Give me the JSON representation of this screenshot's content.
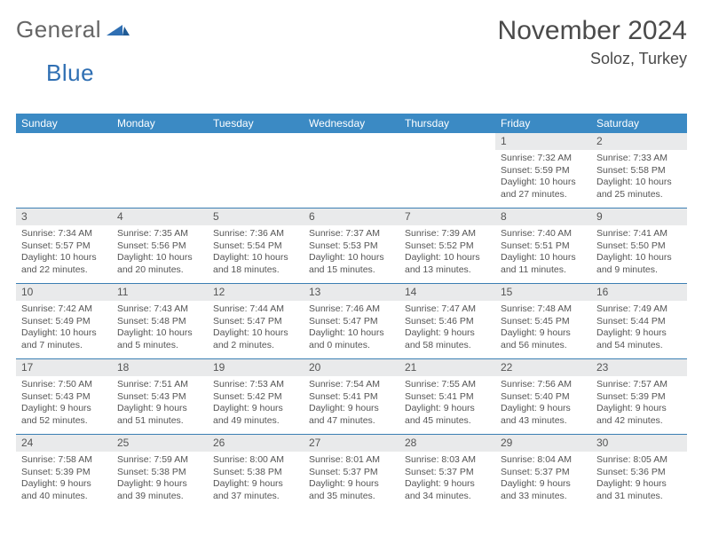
{
  "brand": {
    "text_gray": "General",
    "text_blue": "Blue"
  },
  "title": "November 2024",
  "location": "Soloz, Turkey",
  "colors": {
    "header_bg": "#3b8ac4",
    "header_text": "#ffffff",
    "daynum_bg": "#e9eaeb",
    "text": "#555555",
    "rule": "#3b7fb3",
    "brand_gray": "#666666",
    "brand_blue": "#2f6fb3",
    "page_bg": "#ffffff"
  },
  "fonts": {
    "month_title_pt": 30,
    "location_pt": 18,
    "logo_pt": 26,
    "weekday_pt": 12,
    "daynum_pt": 12,
    "body_pt": 10.5
  },
  "weekdays": [
    "Sunday",
    "Monday",
    "Tuesday",
    "Wednesday",
    "Thursday",
    "Friday",
    "Saturday"
  ],
  "weeks": [
    [
      {
        "empty": true
      },
      {
        "empty": true
      },
      {
        "empty": true
      },
      {
        "empty": true
      },
      {
        "empty": true
      },
      {
        "n": "1",
        "sr": "7:32 AM",
        "ss": "5:59 PM",
        "dl": "10 hours and 27 minutes."
      },
      {
        "n": "2",
        "sr": "7:33 AM",
        "ss": "5:58 PM",
        "dl": "10 hours and 25 minutes."
      }
    ],
    [
      {
        "n": "3",
        "sr": "7:34 AM",
        "ss": "5:57 PM",
        "dl": "10 hours and 22 minutes."
      },
      {
        "n": "4",
        "sr": "7:35 AM",
        "ss": "5:56 PM",
        "dl": "10 hours and 20 minutes."
      },
      {
        "n": "5",
        "sr": "7:36 AM",
        "ss": "5:54 PM",
        "dl": "10 hours and 18 minutes."
      },
      {
        "n": "6",
        "sr": "7:37 AM",
        "ss": "5:53 PM",
        "dl": "10 hours and 15 minutes."
      },
      {
        "n": "7",
        "sr": "7:39 AM",
        "ss": "5:52 PM",
        "dl": "10 hours and 13 minutes."
      },
      {
        "n": "8",
        "sr": "7:40 AM",
        "ss": "5:51 PM",
        "dl": "10 hours and 11 minutes."
      },
      {
        "n": "9",
        "sr": "7:41 AM",
        "ss": "5:50 PM",
        "dl": "10 hours and 9 minutes."
      }
    ],
    [
      {
        "n": "10",
        "sr": "7:42 AM",
        "ss": "5:49 PM",
        "dl": "10 hours and 7 minutes."
      },
      {
        "n": "11",
        "sr": "7:43 AM",
        "ss": "5:48 PM",
        "dl": "10 hours and 5 minutes."
      },
      {
        "n": "12",
        "sr": "7:44 AM",
        "ss": "5:47 PM",
        "dl": "10 hours and 2 minutes."
      },
      {
        "n": "13",
        "sr": "7:46 AM",
        "ss": "5:47 PM",
        "dl": "10 hours and 0 minutes."
      },
      {
        "n": "14",
        "sr": "7:47 AM",
        "ss": "5:46 PM",
        "dl": "9 hours and 58 minutes."
      },
      {
        "n": "15",
        "sr": "7:48 AM",
        "ss": "5:45 PM",
        "dl": "9 hours and 56 minutes."
      },
      {
        "n": "16",
        "sr": "7:49 AM",
        "ss": "5:44 PM",
        "dl": "9 hours and 54 minutes."
      }
    ],
    [
      {
        "n": "17",
        "sr": "7:50 AM",
        "ss": "5:43 PM",
        "dl": "9 hours and 52 minutes."
      },
      {
        "n": "18",
        "sr": "7:51 AM",
        "ss": "5:43 PM",
        "dl": "9 hours and 51 minutes."
      },
      {
        "n": "19",
        "sr": "7:53 AM",
        "ss": "5:42 PM",
        "dl": "9 hours and 49 minutes."
      },
      {
        "n": "20",
        "sr": "7:54 AM",
        "ss": "5:41 PM",
        "dl": "9 hours and 47 minutes."
      },
      {
        "n": "21",
        "sr": "7:55 AM",
        "ss": "5:41 PM",
        "dl": "9 hours and 45 minutes."
      },
      {
        "n": "22",
        "sr": "7:56 AM",
        "ss": "5:40 PM",
        "dl": "9 hours and 43 minutes."
      },
      {
        "n": "23",
        "sr": "7:57 AM",
        "ss": "5:39 PM",
        "dl": "9 hours and 42 minutes."
      }
    ],
    [
      {
        "n": "24",
        "sr": "7:58 AM",
        "ss": "5:39 PM",
        "dl": "9 hours and 40 minutes."
      },
      {
        "n": "25",
        "sr": "7:59 AM",
        "ss": "5:38 PM",
        "dl": "9 hours and 39 minutes."
      },
      {
        "n": "26",
        "sr": "8:00 AM",
        "ss": "5:38 PM",
        "dl": "9 hours and 37 minutes."
      },
      {
        "n": "27",
        "sr": "8:01 AM",
        "ss": "5:37 PM",
        "dl": "9 hours and 35 minutes."
      },
      {
        "n": "28",
        "sr": "8:03 AM",
        "ss": "5:37 PM",
        "dl": "9 hours and 34 minutes."
      },
      {
        "n": "29",
        "sr": "8:04 AM",
        "ss": "5:37 PM",
        "dl": "9 hours and 33 minutes."
      },
      {
        "n": "30",
        "sr": "8:05 AM",
        "ss": "5:36 PM",
        "dl": "9 hours and 31 minutes."
      }
    ]
  ],
  "labels": {
    "sunrise": "Sunrise:",
    "sunset": "Sunset:",
    "daylight": "Daylight:"
  }
}
